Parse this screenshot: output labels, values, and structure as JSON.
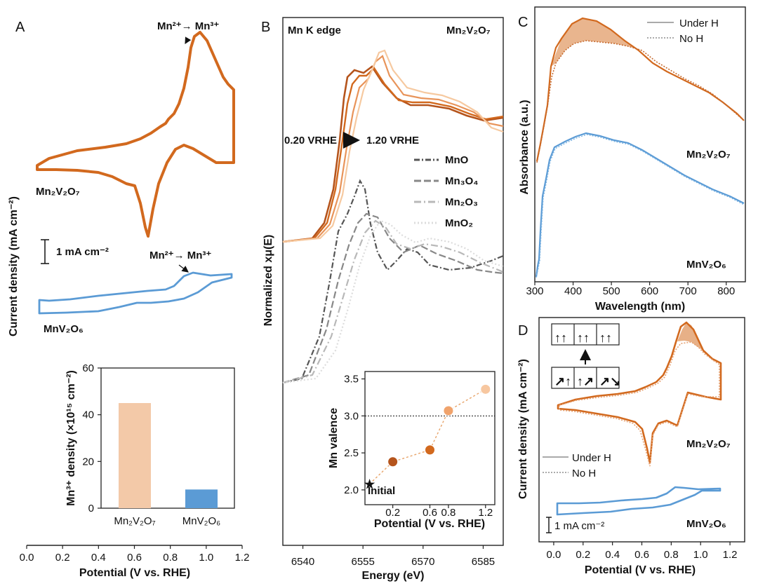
{
  "figure": {
    "panels": [
      {
        "id": "A",
        "label": "A",
        "type": "line",
        "title": "",
        "xlabel": "Potential (V vs. RHE)",
        "ylabel": "Current density (mA cm⁻²)",
        "xlim": [
          0.0,
          1.2
        ],
        "xticks": [
          "0.0",
          "0.2",
          "0.4",
          "0.6",
          "0.8",
          "1.0",
          "1.2"
        ],
        "series": [
          {
            "name": "Mn₂V₂O₇",
            "color": "#d2691e"
          },
          {
            "name": "MnV₂O₆",
            "color": "#5b9bd5"
          }
        ],
        "annotations": [
          "Mn²⁺→ Mn³⁺",
          "Mn²⁺→ Mn³⁺"
        ],
        "scale_bar": "1 mA cm⁻²",
        "inset": {
          "type": "bar",
          "ylabel": "Mn³⁺ density (×10¹⁵ cm⁻²)",
          "ylim": [
            0,
            60
          ],
          "yticks": [
            "0",
            "20",
            "40",
            "60"
          ],
          "categories": [
            "Mn₂V₂O₇",
            "MnV₂O₆"
          ],
          "values": [
            45,
            8
          ],
          "colors": [
            "#f3c9a8",
            "#5b9bd5"
          ]
        }
      },
      {
        "id": "B",
        "label": "B",
        "type": "line",
        "title": "Mn K edge",
        "title_right": "Mn₂V₂O₇",
        "xlabel": "Energy (eV)",
        "ylabel": "Normalized xμ(E)",
        "xlim": [
          6535,
          6590
        ],
        "xticks": [
          "6540",
          "6555",
          "6570",
          "6585"
        ],
        "potential_range": "0.20 Vʀʜᴇ → 1.20 Vʀʜᴇ",
        "potential_start": "0.20 VRHE",
        "potential_end": "1.20 VRHE",
        "legend": [
          "MnO",
          "Mn₃O₄",
          "Mn₂O₃",
          "MnO₂"
        ],
        "inset": {
          "type": "scatter",
          "xlabel": "Potential (V vs. RHE)",
          "ylabel": "Mn valence",
          "xlim": [
            -0.1,
            1.3
          ],
          "ylim": [
            1.8,
            3.6
          ],
          "xticks": [
            "0.2",
            "0.6",
            "0.8",
            "1.2"
          ],
          "yticks": [
            "2.0",
            "2.5",
            "3.0",
            "3.5"
          ],
          "x": [
            0.2,
            0.6,
            0.8,
            1.2
          ],
          "y": [
            2.38,
            2.54,
            3.07,
            3.36
          ],
          "initial": {
            "label": "Initial",
            "y": 2.08
          },
          "reference_line": 3.0
        }
      },
      {
        "id": "C",
        "label": "C",
        "type": "line",
        "xlabel": "Wavelength (nm)",
        "ylabel": "Absorbance (a.u.)",
        "xlim": [
          300,
          850
        ],
        "xticks": [
          "300",
          "400",
          "500",
          "600",
          "700",
          "800"
        ],
        "legend": [
          "Under H",
          "No H"
        ],
        "series": [
          {
            "name": "Mn₂V₂O₇",
            "color": "#d2691e"
          },
          {
            "name": "MnV₂O₆",
            "color": "#5b9bd5"
          }
        ]
      },
      {
        "id": "D",
        "label": "D",
        "type": "line",
        "xlabel": "Potential (V vs. RHE)",
        "ylabel": "Current density (mA cm⁻²)",
        "xlim": [
          -0.1,
          1.3
        ],
        "xticks": [
          "0.0",
          "0.2",
          "0.4",
          "0.6",
          "0.8",
          "1.0",
          "1.2"
        ],
        "legend": [
          "Under H",
          "No H"
        ],
        "series": [
          {
            "name": "Mn₂V₂O₇",
            "color": "#d2691e"
          },
          {
            "name": "MnV₂O₆",
            "color": "#5b9bd5"
          }
        ],
        "scale_bar": "1 mA cm⁻²"
      }
    ]
  },
  "chart_data": [
    {
      "panel": "A",
      "type": "line",
      "xlabel": "Potential (V vs. RHE)",
      "ylabel": "Current density (mA cm⁻²)",
      "xlim": [
        0.0,
        1.2
      ],
      "series": [
        {
          "name": "Mn₂V₂O₇"
        },
        {
          "name": "MnV₂O₆"
        }
      ]
    },
    {
      "panel": "A-inset",
      "type": "bar",
      "categories": [
        "Mn₂V₂O₇",
        "MnV₂O₆"
      ],
      "values": [
        45,
        8
      ],
      "ylabel": "Mn³⁺ density (×10¹⁵ cm⁻²)",
      "ylim": [
        0,
        60
      ]
    },
    {
      "panel": "B-inset",
      "type": "scatter",
      "x": [
        0.2,
        0.6,
        0.8,
        1.2
      ],
      "y": [
        2.38,
        2.54,
        3.07,
        3.36
      ],
      "xlabel": "Potential (V vs. RHE)",
      "ylabel": "Mn valence",
      "ylim": [
        1.8,
        3.6
      ]
    }
  ]
}
